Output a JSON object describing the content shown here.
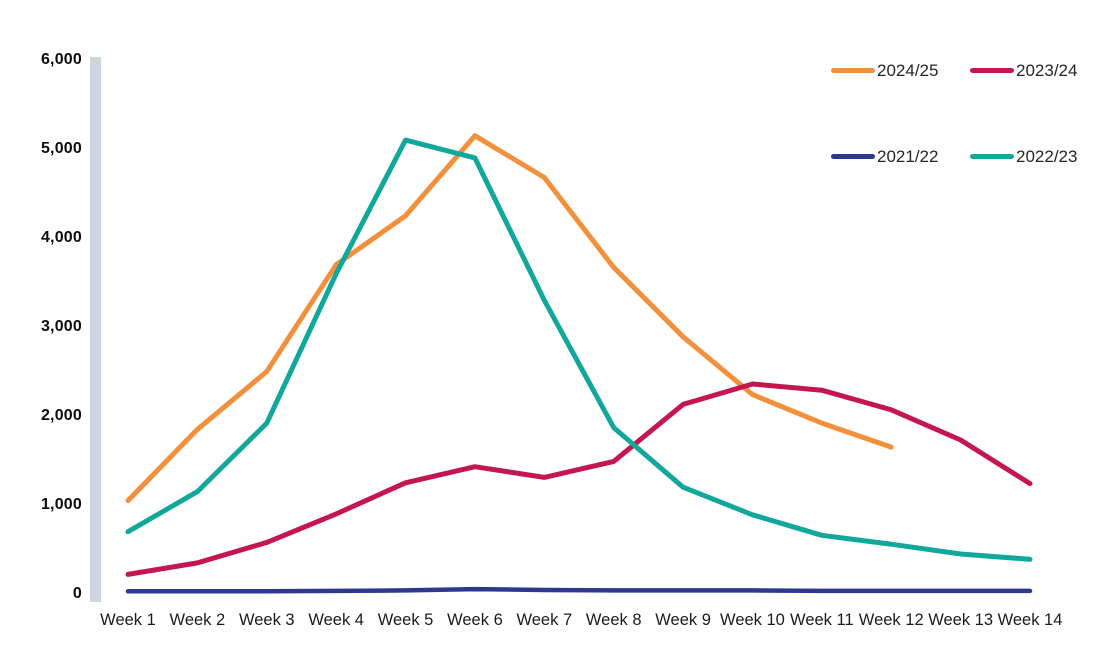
{
  "chart_data": {
    "type": "line",
    "title": "",
    "xlabel": "",
    "ylabel": "",
    "categories": [
      "Week 1",
      "Week 2",
      "Week 3",
      "Week 4",
      "Week 5",
      "Week 6",
      "Week 7",
      "Week 8",
      "Week 9",
      "Week 10",
      "Week 11",
      "Week 12",
      "Week 13",
      "Week 14"
    ],
    "ylim": [
      0,
      6000
    ],
    "yticks": [
      0,
      1000,
      2000,
      3000,
      4000,
      5000,
      6000
    ],
    "ytick_labels": [
      "0",
      "1,000",
      "2,000",
      "3,000",
      "4,000",
      "5,000",
      "6,000"
    ],
    "grid": false,
    "legend_position": "top-right",
    "legend_rows": 2,
    "legend_columns": 2,
    "axis_bar_color": "#ccd5e0",
    "series": [
      {
        "name": "2024/25",
        "color": "#f2903c",
        "values": [
          1050,
          1850,
          2500,
          3700,
          4250,
          5150,
          4680,
          3670,
          2890,
          2240,
          1920,
          1650,
          null,
          null
        ]
      },
      {
        "name": "2023/24",
        "color": "#c41752",
        "values": [
          220,
          350,
          580,
          900,
          1250,
          1430,
          1310,
          1490,
          2130,
          2360,
          2290,
          2070,
          1730,
          1240
        ]
      },
      {
        "name": "2021/22",
        "color": "#2b3a8f",
        "values": [
          30,
          30,
          30,
          35,
          40,
          55,
          45,
          40,
          40,
          40,
          35,
          35,
          35,
          35
        ]
      },
      {
        "name": "2022/23",
        "color": "#12a79b",
        "values": [
          700,
          1150,
          1920,
          3600,
          5100,
          4900,
          3300,
          1870,
          1200,
          890,
          660,
          560,
          450,
          390
        ]
      }
    ]
  }
}
